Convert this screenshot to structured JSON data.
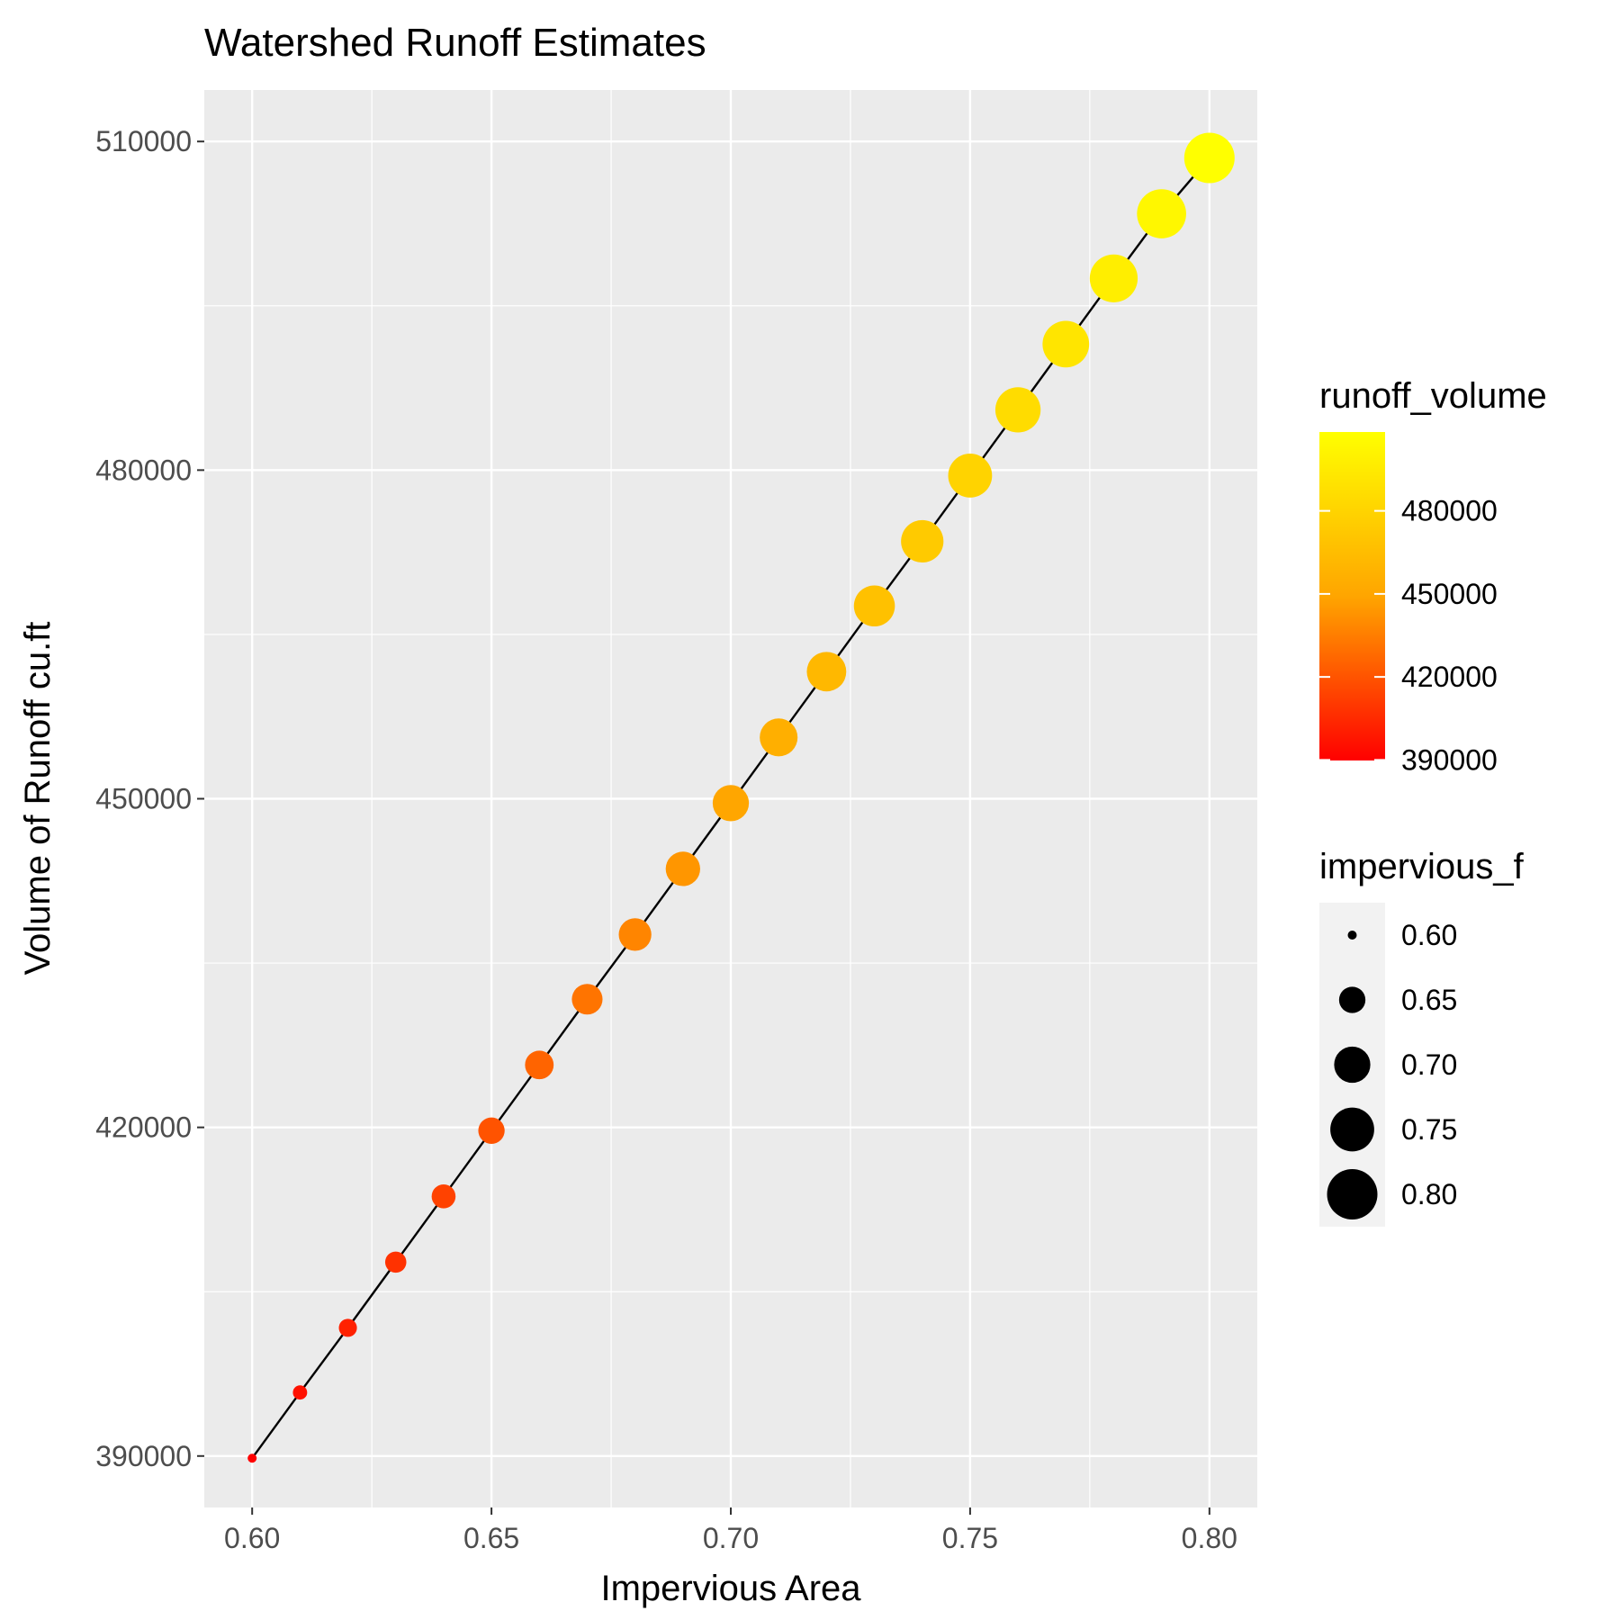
{
  "chart_data": {
    "type": "scatter",
    "title": "Watershed Runoff Estimates",
    "xlabel": "Impervious Area",
    "ylabel": "Volume of Runoff cu.ft",
    "xlim": [
      0.59,
      0.81
    ],
    "ylim": [
      385300,
      514700
    ],
    "x_ticks": [
      0.6,
      0.65,
      0.7,
      0.75,
      0.8
    ],
    "x_tick_labels": [
      "0.60",
      "0.65",
      "0.70",
      "0.75",
      "0.80"
    ],
    "y_ticks": [
      390000,
      420000,
      450000,
      480000,
      510000
    ],
    "y_tick_labels": [
      "390000",
      "420000",
      "450000",
      "480000",
      "510000"
    ],
    "grid": true,
    "panel_background": "#ebebeb",
    "grid_color": "#ffffff",
    "line_color": "#000000",
    "x": [
      0.6,
      0.61,
      0.62,
      0.63,
      0.64,
      0.65,
      0.66,
      0.67,
      0.68,
      0.69,
      0.7,
      0.71,
      0.72,
      0.73,
      0.74,
      0.75,
      0.76,
      0.77,
      0.78,
      0.79,
      0.8
    ],
    "y": [
      389800,
      395800,
      401700,
      407700,
      413700,
      419700,
      425700,
      431700,
      437600,
      443600,
      449600,
      455600,
      461600,
      467600,
      473500,
      479500,
      485500,
      491500,
      497500,
      503400,
      508500
    ],
    "color_legend": {
      "title": "runoff_volume",
      "low_color": "#ff0000",
      "mid_color": "#ffa500",
      "high_color": "#ffff00",
      "range": [
        389800,
        508500
      ],
      "breaks": [
        390000,
        420000,
        450000,
        480000
      ],
      "labels": [
        "390000",
        "420000",
        "450000",
        "480000"
      ]
    },
    "size_legend": {
      "title": "impervious_f",
      "range": [
        0.6,
        0.8
      ],
      "breaks": [
        0.6,
        0.65,
        0.7,
        0.75,
        0.8
      ],
      "labels": [
        "0.60",
        "0.65",
        "0.70",
        "0.75",
        "0.80"
      ]
    }
  }
}
